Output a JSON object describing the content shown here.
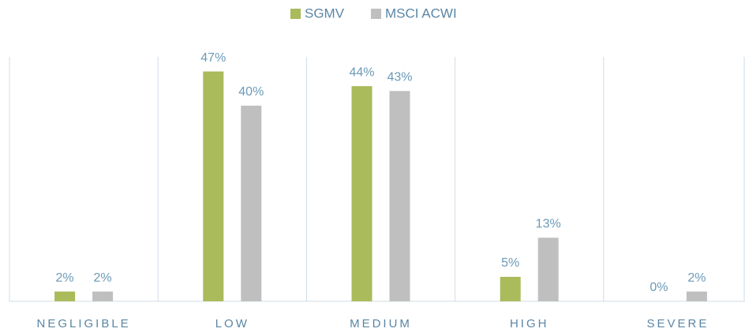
{
  "chart_data": {
    "type": "bar",
    "categories": [
      "NEGLIGIBLE",
      "LOW",
      "MEDIUM",
      "HIGH",
      "SEVERE"
    ],
    "series": [
      {
        "name": "SGMV",
        "color": "#a9bb5b",
        "values": [
          2,
          47,
          44,
          5,
          0
        ],
        "value_labels": [
          "2%",
          "47%",
          "44%",
          "5%",
          "0%"
        ]
      },
      {
        "name": "MSCI ACWI",
        "color": "#bfbfbf",
        "values": [
          2,
          40,
          43,
          13,
          2
        ],
        "value_labels": [
          "2%",
          "40%",
          "43%",
          "13%",
          "2%"
        ]
      }
    ],
    "ylim": [
      0,
      50
    ],
    "legend": "top"
  }
}
